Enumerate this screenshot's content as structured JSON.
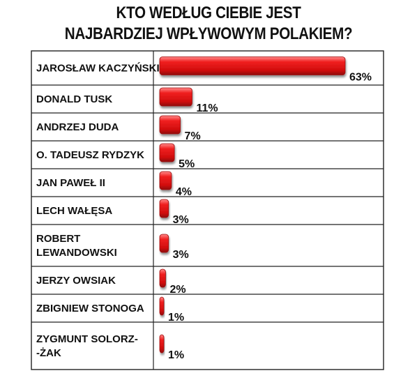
{
  "title_line1": "KTO WEDŁUG CIEBIE JEST",
  "title_line2": "NAJBARDZIEJ WPŁYWOWYM POLAKIEM?",
  "chart_data": {
    "type": "bar",
    "orientation": "horizontal",
    "title": "KTO WEDŁUG CIEBIE JEST NAJBARDZIEJ WPŁYWOWYM POLAKIEM?",
    "categories": [
      [
        "JAROSŁAW KACZYŃSKI"
      ],
      [
        "DONALD TUSK"
      ],
      [
        "ANDRZEJ DUDA"
      ],
      [
        "O. TADEUSZ RYDZYK"
      ],
      [
        "JAN PAWEŁ II"
      ],
      [
        "LECH WAŁĘSA"
      ],
      [
        "ROBERT",
        "LEWANDOWSKI"
      ],
      [
        "JERZY OWSIAK"
      ],
      [
        "ZBIGNIEW STONOGA"
      ],
      [
        "ZYGMUNT SOLORZ-",
        "-ŻAK"
      ]
    ],
    "values": [
      63,
      11,
      7,
      5,
      4,
      3,
      3,
      2,
      1,
      1
    ],
    "value_labels": [
      "63%",
      "11%",
      "7%",
      "5%",
      "4%",
      "3%",
      "3%",
      "2%",
      "1%",
      "1%"
    ],
    "unit": "%",
    "bar_color": "#e31b1b",
    "grid": false,
    "legend": "none"
  }
}
